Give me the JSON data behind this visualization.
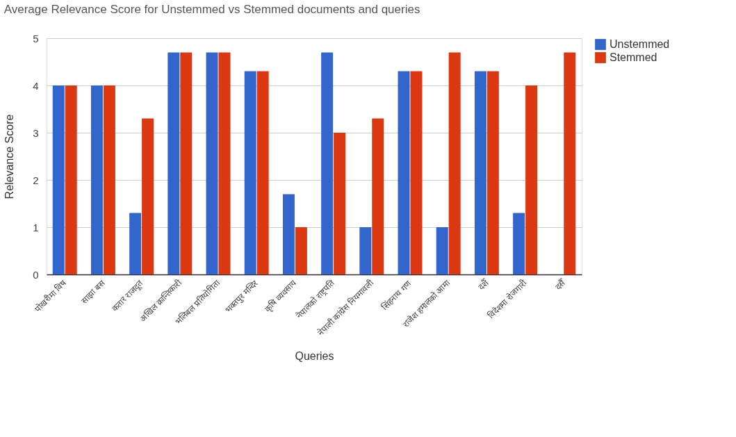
{
  "chart_data": {
    "type": "bar",
    "title": "Average Relevance Score for Unstemmed vs Stemmed documents and queries",
    "xlabel": "Queries",
    "ylabel": "Relevance Score",
    "categories": [
      "पोखरीमा विष",
      "साझा बस",
      "कतार राजदूत",
      "अखिल क्रान्तिकारी",
      "भलिबल प्रतियोगिता",
      "भक्तपुर मन्दिर",
      "कृषि व्यवसाय",
      "नेपालको राष्ट्रपति",
      "नेपाली कांग्रेस नियमावली",
      "सिंहनाथ गण",
      "राजेश हमालको आमा",
      "दशैँ",
      "विदेशमा रोजगारी",
      "दसैँ"
    ],
    "series": [
      {
        "name": "Unstemmed",
        "color": "#3366cc",
        "values": [
          4.0,
          4.0,
          1.3,
          4.7,
          4.7,
          4.3,
          1.7,
          4.7,
          1.0,
          4.3,
          1.0,
          4.3,
          1.3,
          0
        ]
      },
      {
        "name": "Stemmed",
        "color": "#dc3912",
        "values": [
          4.0,
          4.0,
          3.3,
          4.7,
          4.7,
          4.3,
          1.0,
          3.0,
          3.3,
          4.3,
          4.7,
          4.3,
          4.0,
          4.7
        ]
      }
    ],
    "ylim": [
      0,
      5
    ],
    "yticks": [
      0,
      1,
      2,
      3,
      4,
      5
    ],
    "grid": "y",
    "legend": "top right"
  }
}
